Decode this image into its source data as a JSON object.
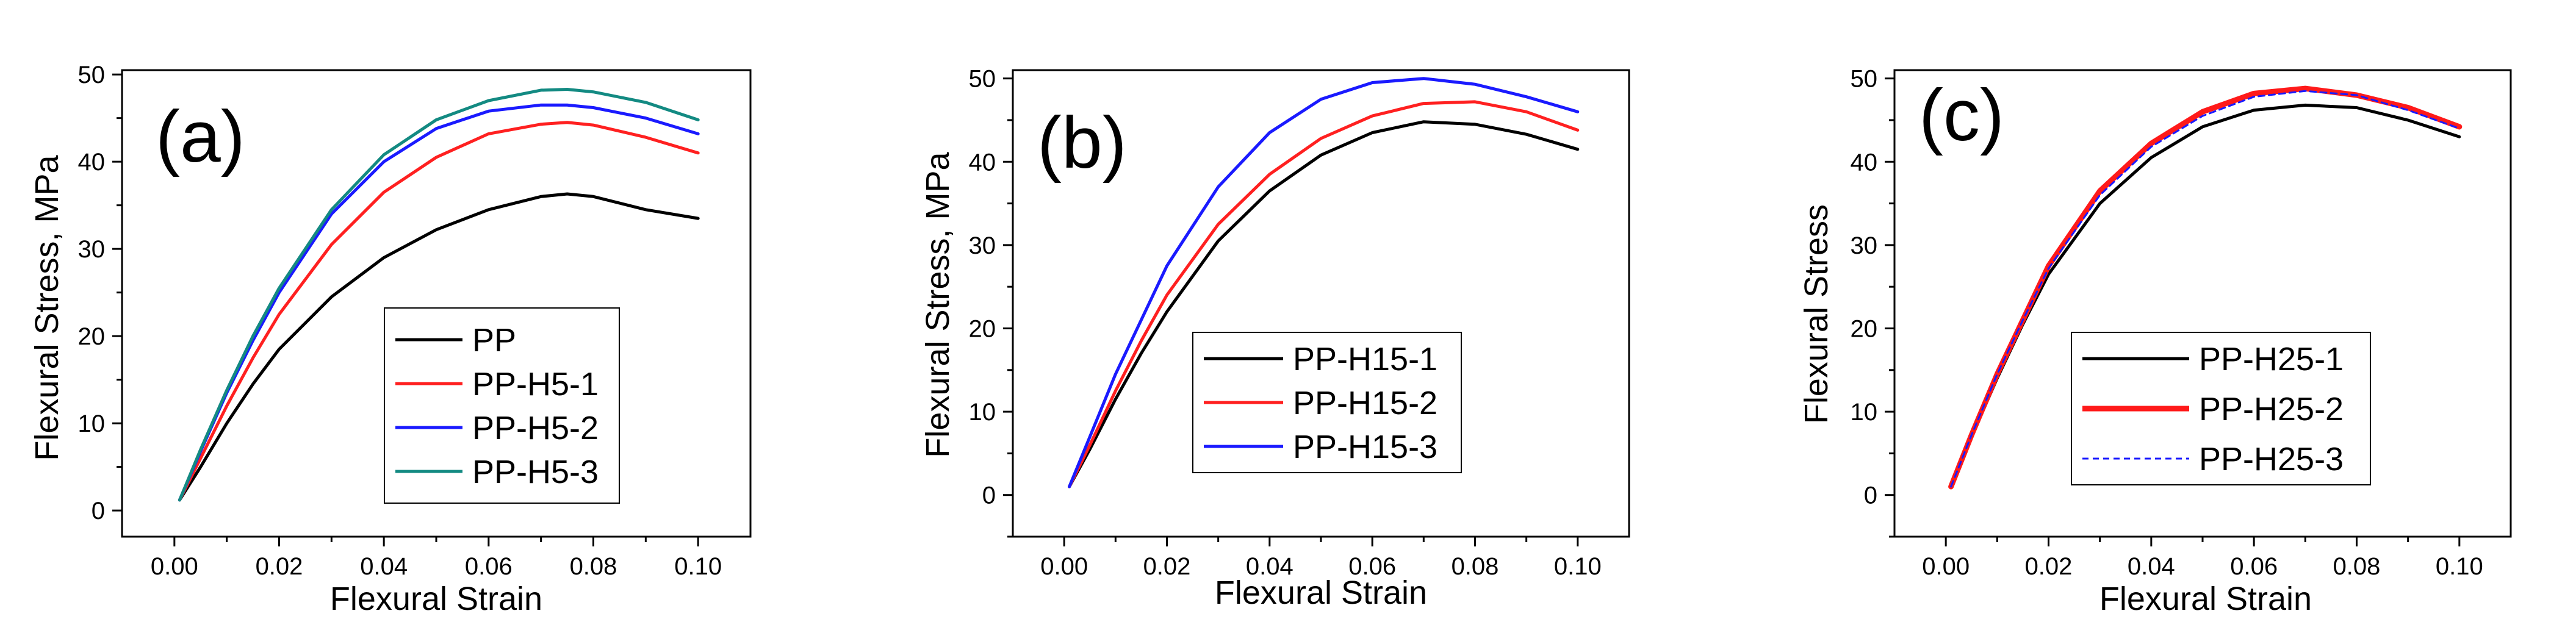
{
  "figure": {
    "background": "#ffffff"
  },
  "chart_data": [
    {
      "type": "line",
      "panel_label": "(a)",
      "xlabel": "Flexural Strain",
      "ylabel": "Flexural Stress, MPa",
      "xlim": [
        -0.01,
        0.11
      ],
      "ylim": [
        -3,
        50.5
      ],
      "x_ticks": [
        0.0,
        0.02,
        0.04,
        0.06,
        0.08,
        0.1
      ],
      "x_tick_labels": [
        "0.00",
        "0.02",
        "0.04",
        "0.06",
        "0.08",
        "0.10"
      ],
      "y_ticks": [
        0,
        10,
        20,
        30,
        40,
        50
      ],
      "y_tick_labels": [
        "0",
        "10",
        "20",
        "30",
        "40",
        "50"
      ],
      "legend_position": "lower-right",
      "x": [
        0.001,
        0.005,
        0.01,
        0.015,
        0.02,
        0.03,
        0.04,
        0.05,
        0.06,
        0.07,
        0.075,
        0.08,
        0.09,
        0.1
      ],
      "series": [
        {
          "name": "PP",
          "color": "#000000",
          "style": "solid",
          "values": [
            1.2,
            5.0,
            10.0,
            14.5,
            18.5,
            24.5,
            29.0,
            32.2,
            34.5,
            36.0,
            36.3,
            36.0,
            34.5,
            33.5
          ]
        },
        {
          "name": "PP-H5-1",
          "color": "#ff2020",
          "style": "solid",
          "values": [
            1.2,
            6.0,
            12.0,
            17.5,
            22.5,
            30.5,
            36.5,
            40.5,
            43.2,
            44.3,
            44.5,
            44.2,
            42.8,
            41.0
          ]
        },
        {
          "name": "PP-H5-2",
          "color": "#1a1aff",
          "style": "solid",
          "values": [
            1.2,
            6.8,
            13.5,
            19.5,
            25.0,
            34.0,
            40.0,
            43.8,
            45.8,
            46.5,
            46.5,
            46.2,
            45.0,
            43.2
          ]
        },
        {
          "name": "PP-H5-3",
          "color": "#138a82",
          "style": "solid",
          "values": [
            1.2,
            7.0,
            13.8,
            20.0,
            25.5,
            34.5,
            40.8,
            44.8,
            47.0,
            48.2,
            48.3,
            48.0,
            46.8,
            44.8
          ]
        }
      ]
    },
    {
      "type": "line",
      "panel_label": "(b)",
      "xlabel": "Flexural Strain",
      "ylabel": "Flexural Stress, MPa",
      "xlim": [
        -0.01,
        0.11
      ],
      "ylim": [
        -5,
        51
      ],
      "x_ticks": [
        0.0,
        0.02,
        0.04,
        0.06,
        0.08,
        0.1
      ],
      "x_tick_labels": [
        "0.00",
        "0.02",
        "0.04",
        "0.06",
        "0.08",
        "0.10"
      ],
      "y_ticks": [
        0,
        10,
        20,
        30,
        40,
        50
      ],
      "y_tick_labels": [
        "0",
        "10",
        "20",
        "30",
        "40",
        "50"
      ],
      "legend_position": "lower-center",
      "x": [
        0.001,
        0.005,
        0.01,
        0.015,
        0.02,
        0.03,
        0.04,
        0.05,
        0.06,
        0.07,
        0.08,
        0.09,
        0.1
      ],
      "series": [
        {
          "name": "PP-H15-1",
          "color": "#000000",
          "style": "solid",
          "values": [
            1.0,
            5.5,
            11.5,
            17.0,
            22.0,
            30.5,
            36.5,
            40.8,
            43.5,
            44.8,
            44.5,
            43.3,
            41.5
          ]
        },
        {
          "name": "PP-H15-2",
          "color": "#ff2020",
          "style": "solid",
          "values": [
            1.0,
            6.0,
            12.5,
            18.5,
            24.0,
            32.5,
            38.5,
            42.8,
            45.5,
            47.0,
            47.2,
            46.0,
            43.8
          ]
        },
        {
          "name": "PP-H15-3",
          "color": "#1a1aff",
          "style": "solid",
          "values": [
            1.0,
            7.0,
            14.5,
            21.0,
            27.5,
            37.0,
            43.5,
            47.5,
            49.5,
            50.0,
            49.3,
            47.8,
            46.0
          ]
        }
      ]
    },
    {
      "type": "line",
      "panel_label": "(c)",
      "xlabel": "Flexural Strain",
      "ylabel": "Flexural Stress",
      "xlim": [
        -0.01,
        0.11
      ],
      "ylim": [
        -5,
        51
      ],
      "x_ticks": [
        0.0,
        0.02,
        0.04,
        0.06,
        0.08,
        0.1
      ],
      "x_tick_labels": [
        "0.00",
        "0.02",
        "0.04",
        "0.06",
        "0.08",
        "0.10"
      ],
      "y_ticks": [
        0,
        10,
        20,
        30,
        40,
        50
      ],
      "y_tick_labels": [
        "0",
        "10",
        "20",
        "30",
        "40",
        "50"
      ],
      "legend_position": "lower-center",
      "x": [
        0.001,
        0.005,
        0.01,
        0.015,
        0.02,
        0.03,
        0.04,
        0.05,
        0.06,
        0.07,
        0.08,
        0.09,
        0.1
      ],
      "series": [
        {
          "name": "PP-H25-1",
          "color": "#000000",
          "style": "solid",
          "values": [
            1.0,
            7.0,
            14.0,
            20.5,
            26.5,
            35.0,
            40.5,
            44.2,
            46.2,
            46.8,
            46.5,
            45.0,
            43.0
          ]
        },
        {
          "name": "PP-H25-2",
          "color": "#ff1a1a",
          "style": "thick",
          "values": [
            1.0,
            7.2,
            14.5,
            21.0,
            27.5,
            36.5,
            42.2,
            46.0,
            48.2,
            48.8,
            48.0,
            46.5,
            44.2
          ]
        },
        {
          "name": "PP-H25-3",
          "color": "#1a1aff",
          "style": "dashed",
          "values": [
            1.0,
            7.2,
            14.5,
            21.0,
            27.2,
            36.0,
            41.8,
            45.5,
            47.8,
            48.5,
            48.0,
            46.2,
            44.0
          ]
        }
      ]
    }
  ]
}
